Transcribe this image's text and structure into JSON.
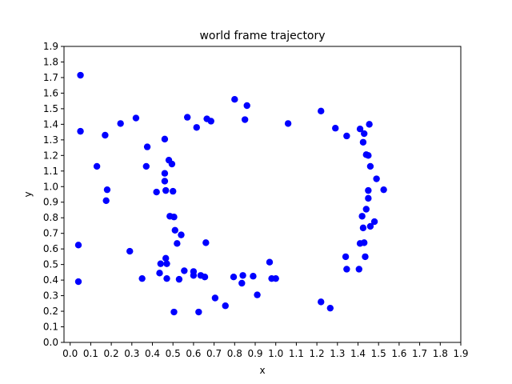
{
  "chart_data": {
    "type": "scatter",
    "title": "world frame trajectory",
    "xlabel": "x",
    "ylabel": "y",
    "xlim": [
      -0.03,
      1.9
    ],
    "ylim": [
      0.0,
      1.9
    ],
    "x_ticks": [
      "0.0",
      "0.1",
      "0.2",
      "0.3",
      "0.4",
      "0.5",
      "0.6",
      "0.7",
      "0.8",
      "0.9",
      "1.0",
      "1.1",
      "1.2",
      "1.3",
      "1.4",
      "1.5",
      "1.6",
      "1.7",
      "1.8",
      "1.9"
    ],
    "y_ticks": [
      "0.0",
      "0.1",
      "0.2",
      "0.3",
      "0.4",
      "0.5",
      "0.6",
      "0.7",
      "0.8",
      "0.9",
      "1.0",
      "1.1",
      "1.2",
      "1.3",
      "1.4",
      "1.5",
      "1.6",
      "1.7",
      "1.8",
      "1.9"
    ],
    "marker_color": "#0000ff",
    "grid": false,
    "series": [
      {
        "points": [
          {
            "x": 0.05,
            "y": 1.715
          },
          {
            "x": 0.05,
            "y": 1.355
          },
          {
            "x": 0.04,
            "y": 0.625
          },
          {
            "x": 0.04,
            "y": 0.39
          },
          {
            "x": 0.17,
            "y": 1.33
          },
          {
            "x": 0.13,
            "y": 1.13
          },
          {
            "x": 0.18,
            "y": 0.98
          },
          {
            "x": 0.175,
            "y": 0.91
          },
          {
            "x": 0.245,
            "y": 1.405
          },
          {
            "x": 0.32,
            "y": 1.44
          },
          {
            "x": 0.375,
            "y": 1.255
          },
          {
            "x": 0.37,
            "y": 1.13
          },
          {
            "x": 0.29,
            "y": 0.585
          },
          {
            "x": 0.35,
            "y": 0.41
          },
          {
            "x": 0.46,
            "y": 1.305
          },
          {
            "x": 0.48,
            "y": 1.17
          },
          {
            "x": 0.495,
            "y": 1.145
          },
          {
            "x": 0.46,
            "y": 1.085
          },
          {
            "x": 0.46,
            "y": 1.035
          },
          {
            "x": 0.42,
            "y": 0.965
          },
          {
            "x": 0.465,
            "y": 0.975
          },
          {
            "x": 0.5,
            "y": 0.97
          },
          {
            "x": 0.485,
            "y": 0.81
          },
          {
            "x": 0.505,
            "y": 0.805
          },
          {
            "x": 0.51,
            "y": 0.72
          },
          {
            "x": 0.54,
            "y": 0.69
          },
          {
            "x": 0.52,
            "y": 0.635
          },
          {
            "x": 0.465,
            "y": 0.54
          },
          {
            "x": 0.44,
            "y": 0.505
          },
          {
            "x": 0.47,
            "y": 0.505
          },
          {
            "x": 0.435,
            "y": 0.445
          },
          {
            "x": 0.47,
            "y": 0.41
          },
          {
            "x": 0.53,
            "y": 0.405
          },
          {
            "x": 0.555,
            "y": 0.46
          },
          {
            "x": 0.6,
            "y": 0.455
          },
          {
            "x": 0.6,
            "y": 0.43
          },
          {
            "x": 0.635,
            "y": 0.43
          },
          {
            "x": 0.655,
            "y": 0.42
          },
          {
            "x": 0.505,
            "y": 0.195
          },
          {
            "x": 0.625,
            "y": 0.195
          },
          {
            "x": 0.66,
            "y": 0.64
          },
          {
            "x": 0.705,
            "y": 0.285
          },
          {
            "x": 0.755,
            "y": 0.235
          },
          {
            "x": 0.57,
            "y": 1.445
          },
          {
            "x": 0.615,
            "y": 1.38
          },
          {
            "x": 0.665,
            "y": 1.435
          },
          {
            "x": 0.685,
            "y": 1.42
          },
          {
            "x": 0.8,
            "y": 1.56
          },
          {
            "x": 0.86,
            "y": 1.52
          },
          {
            "x": 0.85,
            "y": 1.43
          },
          {
            "x": 0.795,
            "y": 0.42
          },
          {
            "x": 0.84,
            "y": 0.43
          },
          {
            "x": 0.835,
            "y": 0.38
          },
          {
            "x": 0.89,
            "y": 0.425
          },
          {
            "x": 0.91,
            "y": 0.305
          },
          {
            "x": 0.97,
            "y": 0.515
          },
          {
            "x": 0.98,
            "y": 0.41
          },
          {
            "x": 1.0,
            "y": 0.41
          },
          {
            "x": 1.06,
            "y": 1.405
          },
          {
            "x": 1.22,
            "y": 1.485
          },
          {
            "x": 1.29,
            "y": 1.375
          },
          {
            "x": 1.345,
            "y": 1.325
          },
          {
            "x": 1.22,
            "y": 0.26
          },
          {
            "x": 1.265,
            "y": 0.22
          },
          {
            "x": 1.34,
            "y": 0.55
          },
          {
            "x": 1.345,
            "y": 0.47
          },
          {
            "x": 1.405,
            "y": 0.47
          },
          {
            "x": 1.41,
            "y": 1.37
          },
          {
            "x": 1.43,
            "y": 1.34
          },
          {
            "x": 1.455,
            "y": 1.4
          },
          {
            "x": 1.425,
            "y": 1.285
          },
          {
            "x": 1.44,
            "y": 1.205
          },
          {
            "x": 1.45,
            "y": 1.2
          },
          {
            "x": 1.46,
            "y": 1.13
          },
          {
            "x": 1.49,
            "y": 1.05
          },
          {
            "x": 1.45,
            "y": 0.975
          },
          {
            "x": 1.45,
            "y": 0.925
          },
          {
            "x": 1.525,
            "y": 0.98
          },
          {
            "x": 1.44,
            "y": 0.855
          },
          {
            "x": 1.42,
            "y": 0.81
          },
          {
            "x": 1.48,
            "y": 0.775
          },
          {
            "x": 1.46,
            "y": 0.745
          },
          {
            "x": 1.425,
            "y": 0.735
          },
          {
            "x": 1.43,
            "y": 0.64
          },
          {
            "x": 1.41,
            "y": 0.635
          },
          {
            "x": 1.435,
            "y": 0.55
          }
        ]
      }
    ]
  }
}
